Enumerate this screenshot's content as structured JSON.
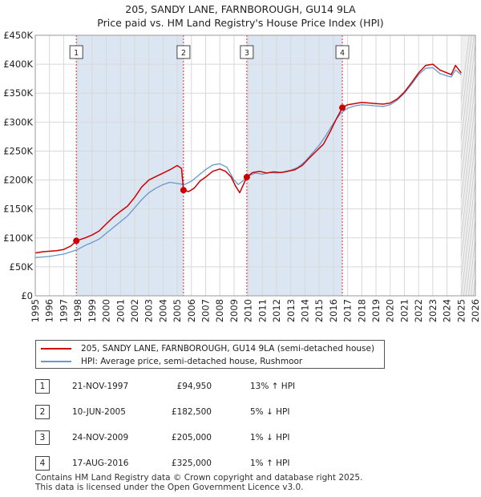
{
  "title": {
    "line1": "205, SANDY LANE, FARNBOROUGH, GU14 9LA",
    "line2": "Price paid vs. HM Land Registry's House Price Index (HPI)"
  },
  "colors": {
    "property": "#cc0000",
    "hpi": "#6699cc",
    "shade": "#dce6f2",
    "future": "#c8c8c8"
  },
  "chart_data": {
    "type": "line",
    "title": "205, SANDY LANE, FARNBOROUGH, GU14 9LA — Price paid vs. HM Land Registry's House Price Index (HPI)",
    "xlim": [
      1995,
      2026
    ],
    "ylim": [
      0,
      450000
    ],
    "x_ticks": [
      "1995",
      "1996",
      "1997",
      "1998",
      "1999",
      "2000",
      "2001",
      "2002",
      "2003",
      "2004",
      "2005",
      "2006",
      "2007",
      "2008",
      "2009",
      "2010",
      "2011",
      "2012",
      "2013",
      "2014",
      "2015",
      "2016",
      "2017",
      "2018",
      "2019",
      "2020",
      "2021",
      "2022",
      "2023",
      "2024",
      "2025",
      "2026"
    ],
    "y_ticks": [
      {
        "value": 0,
        "label": "£0"
      },
      {
        "value": 50000,
        "label": "£50K"
      },
      {
        "value": 100000,
        "label": "£100K"
      },
      {
        "value": 150000,
        "label": "£150K"
      },
      {
        "value": 200000,
        "label": "£200K"
      },
      {
        "value": 250000,
        "label": "£250K"
      },
      {
        "value": 300000,
        "label": "£300K"
      },
      {
        "value": 350000,
        "label": "£350K"
      },
      {
        "value": 400000,
        "label": "£400K"
      },
      {
        "value": 450000,
        "label": "£450K"
      }
    ],
    "data_end_year": 2025.0,
    "series": [
      {
        "name": "205, SANDY LANE, FARNBOROUGH, GU14 9LA (semi-detached house)",
        "key": "property",
        "points": [
          [
            1995.0,
            74000
          ],
          [
            1995.5,
            76000
          ],
          [
            1996.0,
            77000
          ],
          [
            1996.5,
            78000
          ],
          [
            1997.0,
            80000
          ],
          [
            1997.5,
            86000
          ],
          [
            1997.9,
            94950
          ],
          [
            1998.5,
            100000
          ],
          [
            1999.0,
            105000
          ],
          [
            1999.5,
            112000
          ],
          [
            2000.0,
            124000
          ],
          [
            2000.5,
            136000
          ],
          [
            2001.0,
            146000
          ],
          [
            2001.5,
            155000
          ],
          [
            2002.0,
            170000
          ],
          [
            2002.5,
            188000
          ],
          [
            2003.0,
            200000
          ],
          [
            2003.5,
            206000
          ],
          [
            2004.0,
            212000
          ],
          [
            2004.5,
            218000
          ],
          [
            2005.0,
            225000
          ],
          [
            2005.3,
            220000
          ],
          [
            2005.44,
            182500
          ],
          [
            2005.8,
            180000
          ],
          [
            2006.2,
            186000
          ],
          [
            2006.6,
            198000
          ],
          [
            2007.0,
            205000
          ],
          [
            2007.5,
            215000
          ],
          [
            2008.0,
            219000
          ],
          [
            2008.4,
            215000
          ],
          [
            2008.8,
            205000
          ],
          [
            2009.1,
            190000
          ],
          [
            2009.4,
            178000
          ],
          [
            2009.9,
            205000
          ],
          [
            2010.3,
            213000
          ],
          [
            2010.8,
            215000
          ],
          [
            2011.3,
            212000
          ],
          [
            2011.8,
            214000
          ],
          [
            2012.3,
            213000
          ],
          [
            2012.8,
            215000
          ],
          [
            2013.3,
            218000
          ],
          [
            2013.8,
            225000
          ],
          [
            2014.3,
            238000
          ],
          [
            2014.8,
            250000
          ],
          [
            2015.3,
            262000
          ],
          [
            2015.8,
            285000
          ],
          [
            2016.2,
            305000
          ],
          [
            2016.63,
            325000
          ],
          [
            2017.0,
            330000
          ],
          [
            2017.5,
            332000
          ],
          [
            2018.0,
            334000
          ],
          [
            2018.5,
            333000
          ],
          [
            2019.0,
            332000
          ],
          [
            2019.5,
            331000
          ],
          [
            2020.0,
            333000
          ],
          [
            2020.5,
            340000
          ],
          [
            2021.0,
            352000
          ],
          [
            2021.5,
            368000
          ],
          [
            2022.0,
            385000
          ],
          [
            2022.5,
            398000
          ],
          [
            2023.0,
            400000
          ],
          [
            2023.5,
            390000
          ],
          [
            2024.0,
            385000
          ],
          [
            2024.3,
            382000
          ],
          [
            2024.6,
            398000
          ],
          [
            2025.0,
            385000
          ]
        ]
      },
      {
        "name": "HPI: Average price, semi-detached house, Rushmoor",
        "key": "hpi",
        "points": [
          [
            1995.0,
            66000
          ],
          [
            1995.5,
            67000
          ],
          [
            1996.0,
            68000
          ],
          [
            1996.5,
            70000
          ],
          [
            1997.0,
            72000
          ],
          [
            1997.5,
            76000
          ],
          [
            1998.0,
            80000
          ],
          [
            1998.5,
            87000
          ],
          [
            1999.0,
            92000
          ],
          [
            1999.5,
            98000
          ],
          [
            2000.0,
            108000
          ],
          [
            2000.5,
            118000
          ],
          [
            2001.0,
            128000
          ],
          [
            2001.5,
            138000
          ],
          [
            2002.0,
            152000
          ],
          [
            2002.5,
            166000
          ],
          [
            2003.0,
            178000
          ],
          [
            2003.5,
            186000
          ],
          [
            2004.0,
            192000
          ],
          [
            2004.5,
            196000
          ],
          [
            2005.0,
            194000
          ],
          [
            2005.5,
            192000
          ],
          [
            2006.0,
            198000
          ],
          [
            2006.5,
            208000
          ],
          [
            2007.0,
            218000
          ],
          [
            2007.5,
            226000
          ],
          [
            2008.0,
            228000
          ],
          [
            2008.5,
            222000
          ],
          [
            2009.0,
            200000
          ],
          [
            2009.3,
            192000
          ],
          [
            2009.6,
            198000
          ],
          [
            2010.0,
            207000
          ],
          [
            2010.5,
            212000
          ],
          [
            2011.0,
            210000
          ],
          [
            2011.5,
            213000
          ],
          [
            2012.0,
            212000
          ],
          [
            2012.5,
            214000
          ],
          [
            2013.0,
            217000
          ],
          [
            2013.5,
            222000
          ],
          [
            2014.0,
            232000
          ],
          [
            2014.5,
            246000
          ],
          [
            2015.0,
            260000
          ],
          [
            2015.5,
            278000
          ],
          [
            2016.0,
            298000
          ],
          [
            2016.5,
            315000
          ],
          [
            2017.0,
            324000
          ],
          [
            2017.5,
            328000
          ],
          [
            2018.0,
            330000
          ],
          [
            2018.5,
            329000
          ],
          [
            2019.0,
            328000
          ],
          [
            2019.5,
            327000
          ],
          [
            2020.0,
            330000
          ],
          [
            2020.5,
            338000
          ],
          [
            2021.0,
            350000
          ],
          [
            2021.5,
            365000
          ],
          [
            2022.0,
            382000
          ],
          [
            2022.5,
            393000
          ],
          [
            2023.0,
            394000
          ],
          [
            2023.5,
            384000
          ],
          [
            2024.0,
            380000
          ],
          [
            2024.3,
            378000
          ],
          [
            2024.6,
            390000
          ],
          [
            2025.0,
            382000
          ]
        ]
      }
    ],
    "sales": [
      {
        "id": "1",
        "x": 1997.89,
        "price": 94950,
        "date": "21-NOV-1997",
        "price_label": "£94,950",
        "hpi_diff": "13% ↑ HPI"
      },
      {
        "id": "2",
        "x": 2005.44,
        "price": 182500,
        "date": "10-JUN-2005",
        "price_label": "£182,500",
        "hpi_diff": "5% ↓ HPI"
      },
      {
        "id": "3",
        "x": 2009.9,
        "price": 205000,
        "date": "24-NOV-2009",
        "price_label": "£205,000",
        "hpi_diff": "1% ↓ HPI"
      },
      {
        "id": "4",
        "x": 2016.63,
        "price": 325000,
        "date": "17-AUG-2016",
        "price_label": "£325,000",
        "hpi_diff": "1% ↑ HPI"
      }
    ],
    "shaded_ranges": [
      [
        1997.89,
        2005.44
      ],
      [
        2009.9,
        2016.63
      ]
    ]
  },
  "legend": {
    "property_label": "205, SANDY LANE, FARNBOROUGH, GU14 9LA (semi-detached house)",
    "hpi_label": "HPI: Average price, semi-detached house, Rushmoor"
  },
  "footer": {
    "line1": "Contains HM Land Registry data © Crown copyright and database right 2025.",
    "line2": "This data is licensed under the Open Government Licence v3.0."
  }
}
